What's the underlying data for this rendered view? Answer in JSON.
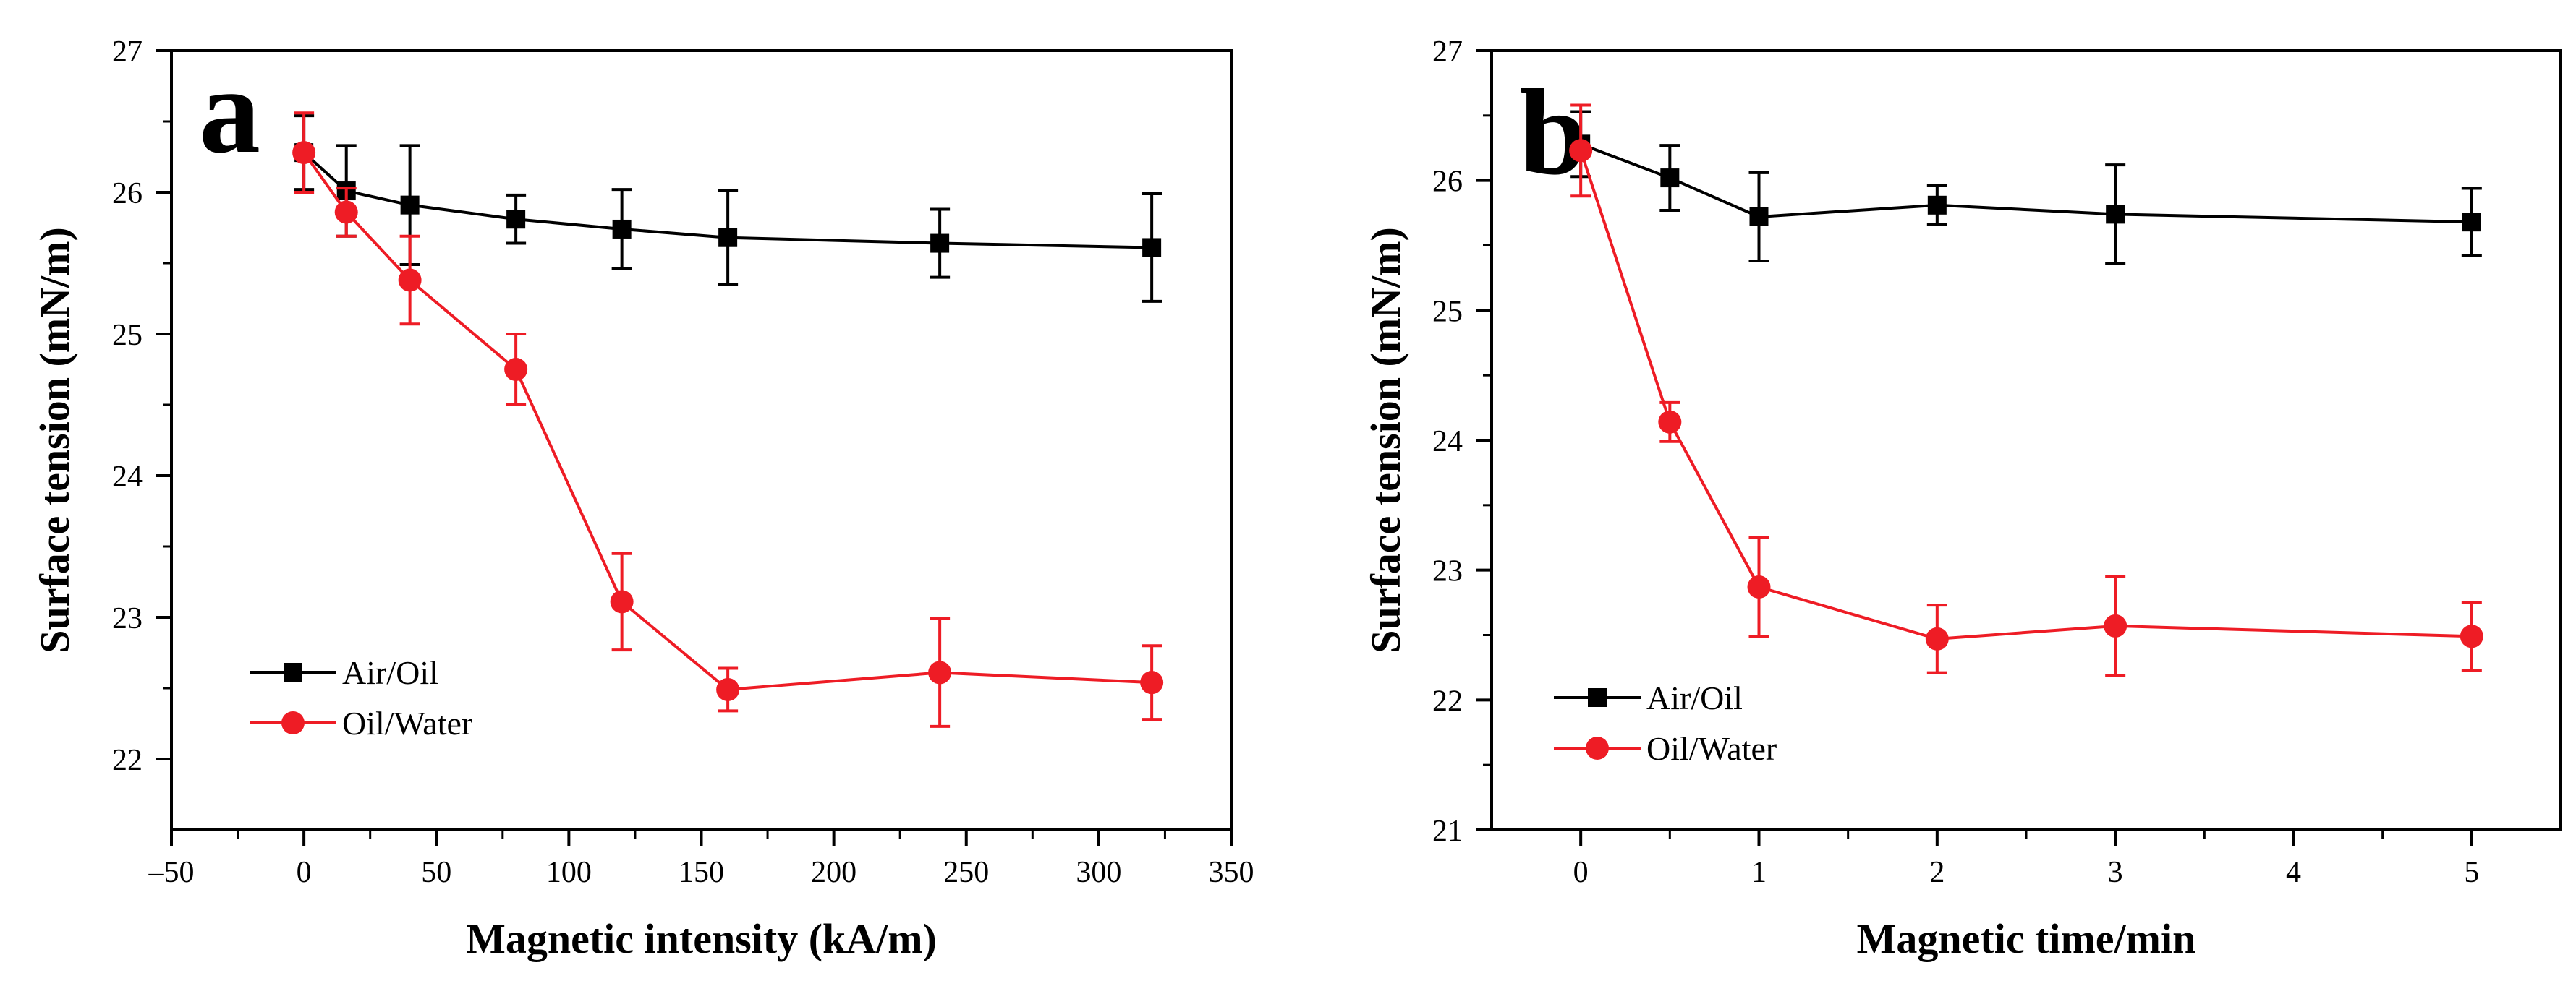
{
  "chart_data": [
    {
      "type": "line",
      "panel_label": "a",
      "xlabel": "Magnetic intensity (kA/m)",
      "ylabel": "Surface tension (mN/m)",
      "xlim": [
        -50,
        350
      ],
      "ylim": [
        21.5,
        27
      ],
      "xticks": [
        -50,
        0,
        50,
        100,
        150,
        200,
        250,
        300,
        350
      ],
      "xtick_labels": [
        "–50",
        "0",
        "50",
        "100",
        "150",
        "200",
        "250",
        "300",
        "350"
      ],
      "yticks": [
        22,
        23,
        24,
        25,
        26,
        27
      ],
      "ytick_labels": [
        "22",
        "23",
        "24",
        "25",
        "26",
        "27"
      ],
      "legend_position": "lower-left",
      "series": [
        {
          "name": "Air/Oil",
          "color": "#000000",
          "marker": "square",
          "x": [
            0,
            16,
            40,
            80,
            120,
            160,
            240,
            320
          ],
          "y": [
            26.28,
            26.01,
            25.91,
            25.81,
            25.74,
            25.68,
            25.64,
            25.61
          ],
          "err": [
            0.26,
            0.32,
            0.42,
            0.17,
            0.28,
            0.33,
            0.24,
            0.38
          ]
        },
        {
          "name": "Oil/Water",
          "color": "#ee1c25",
          "marker": "circle",
          "x": [
            0,
            16,
            40,
            80,
            120,
            160,
            240,
            320
          ],
          "y": [
            26.28,
            25.86,
            25.38,
            24.75,
            23.11,
            22.49,
            22.61,
            22.54
          ],
          "err": [
            0.28,
            0.17,
            0.31,
            0.25,
            0.34,
            0.15,
            0.38,
            0.26
          ]
        }
      ]
    },
    {
      "type": "line",
      "panel_label": "b",
      "xlabel": "Magnetic time/min",
      "ylabel": "Surface tension (mN/m)",
      "xlim": [
        -0.5,
        5.5
      ],
      "ylim": [
        21,
        27
      ],
      "xticks": [
        0,
        1,
        2,
        3,
        4,
        5
      ],
      "xtick_labels": [
        "0",
        "1",
        "2",
        "3",
        "4",
        "5"
      ],
      "yticks": [
        21,
        22,
        23,
        24,
        25,
        26,
        27
      ],
      "ytick_labels": [
        "21",
        "22",
        "23",
        "24",
        "25",
        "26",
        "27"
      ],
      "legend_position": "lower-left",
      "series": [
        {
          "name": "Air/Oil",
          "color": "#000000",
          "marker": "square",
          "x": [
            0,
            0.5,
            1,
            2,
            3,
            5
          ],
          "y": [
            26.28,
            26.02,
            25.72,
            25.81,
            25.74,
            25.68
          ],
          "err": [
            0.25,
            0.25,
            0.34,
            0.15,
            0.38,
            0.26
          ]
        },
        {
          "name": "Oil/Water",
          "color": "#ee1c25",
          "marker": "circle",
          "x": [
            0,
            0.5,
            1,
            2,
            3,
            5
          ],
          "y": [
            26.23,
            24.14,
            22.87,
            22.47,
            22.57,
            22.49
          ],
          "err": [
            0.35,
            0.15,
            0.38,
            0.26,
            0.38,
            0.26
          ]
        }
      ]
    }
  ]
}
